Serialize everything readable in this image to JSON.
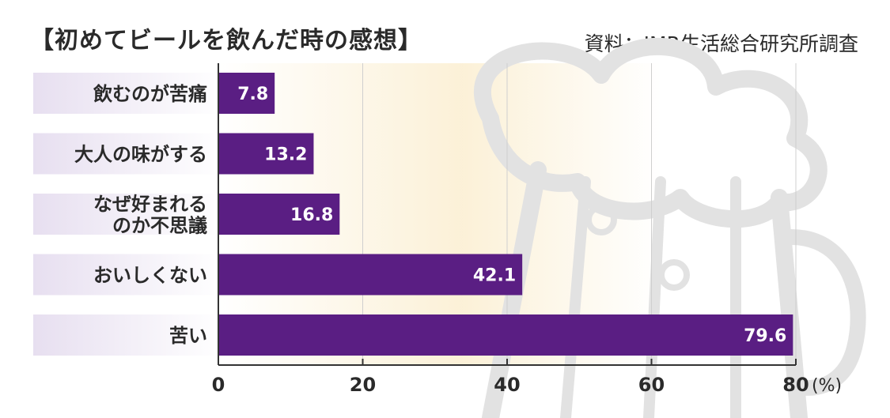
{
  "chart_data": {
    "type": "bar",
    "orientation": "horizontal",
    "title": "【初めてビールを飲んだ時の感想】",
    "source": "資料：JMR生活総合研究所調査",
    "categories": [
      "飲むのが苦痛",
      "大人の味がする",
      "なぜ好まれる\nのか不思議",
      "おいしくない",
      "苦い"
    ],
    "values": [
      7.8,
      13.2,
      16.8,
      42.1,
      79.6
    ],
    "value_labels": [
      "7.8",
      "13.2",
      "16.8",
      "42.1",
      "79.6"
    ],
    "xlim": [
      0,
      80
    ],
    "x_ticks": [
      "0",
      "20",
      "40",
      "60",
      "80"
    ],
    "x_unit": "(%)",
    "grid": true,
    "colors": {
      "bar": "#5a1e83",
      "bar_label": "#ffffff",
      "label_band": "#e7dff0",
      "background_warm": "#fbefd3",
      "mug": "#e2e2e2",
      "grid": "#cfcfcf",
      "text": "#2a2a2a"
    },
    "background_illustration": "beer-mug-icon"
  }
}
